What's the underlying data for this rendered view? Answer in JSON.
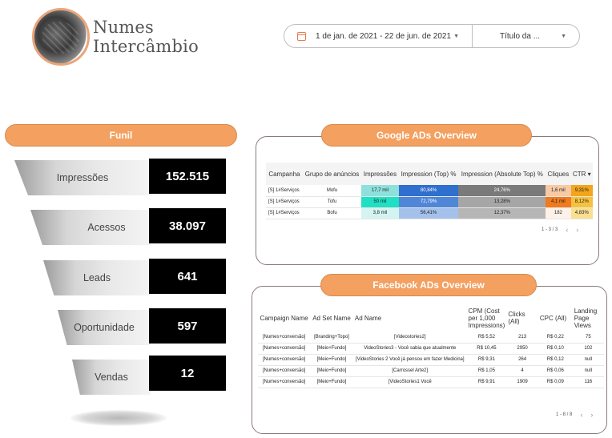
{
  "logo": {
    "line1": "Numes",
    "line2": "Intercâmbio"
  },
  "filters": {
    "date_range": "1 de jan. de 2021 - 22 de jun. de 2021",
    "title": "Título da ...",
    "calendar_icon": "calendar-icon",
    "arrow_icon": "chevron-down-icon"
  },
  "funil": {
    "title": "Funil",
    "steps": [
      {
        "label": "Impressões",
        "value": "152.515"
      },
      {
        "label": "Acessos",
        "value": "38.097"
      },
      {
        "label": "Leads",
        "value": "641"
      },
      {
        "label": "Oportunidade",
        "value": "597"
      },
      {
        "label": "Vendas",
        "value": "12"
      }
    ]
  },
  "google": {
    "title": "Google ADs Overview",
    "columns": [
      "Campanha",
      "Grupo de anúncios",
      "Impressões",
      "Impression (Top) %",
      "Impression (Absolute Top) %",
      "Cliques",
      "CTR"
    ],
    "sort_icon": "▾",
    "rows": [
      [
        "[S] 1#Serviços",
        "Mofu",
        "17,7 mil",
        "80,84%",
        "24,76%",
        "1,6 mil",
        "9,31%"
      ],
      [
        "[S] 1#Serviços",
        "Tofu",
        "50 mil",
        "72,79%",
        "13,28%",
        "4,1 mil",
        "8,12%"
      ],
      [
        "[S] 1#Serviços",
        "Bofu",
        "3,8 mil",
        "56,41%",
        "12,37%",
        "182",
        "4,83%"
      ]
    ],
    "cell_colors": [
      [
        "#ffffff",
        "#ffffff",
        "#8ee0dc",
        "#2f6fce",
        "#7a7a7a",
        "#f7c9a4",
        "#f3a51c"
      ],
      [
        "#ffffff",
        "#ffffff",
        "#1fe0c4",
        "#4f86d8",
        "#a6a6a6",
        "#f07a1e",
        "#f6c23e"
      ],
      [
        "#ffffff",
        "#ffffff",
        "#d4f4f2",
        "#a4c1ec",
        "#b6b6b6",
        "#fdf1e8",
        "#fadf90"
      ]
    ],
    "pager": "1 - 3 / 3"
  },
  "facebook": {
    "title": "Facebook ADs Overview",
    "columns": [
      "Campaign Name",
      "Ad Set Name",
      "Ad Name",
      "CPM (Cost per 1,000 Impressions)",
      "Clicks (All)",
      "CPC (All)",
      "Landing Page Views"
    ],
    "rows": [
      [
        "[Numes+conversão]",
        "[Branding+Topo]",
        "[Videostories2]",
        "R$ 5,52",
        "213",
        "R$ 0,22",
        "75"
      ],
      [
        "[Numes+conversão]",
        "[Meio+Fundo]",
        "VideoStories3 - Você sabia que atualmente",
        "R$ 10,45",
        "2950",
        "R$ 0,10",
        "102"
      ],
      [
        "[Numes+conversão]",
        "[Meio+Fundo]",
        "[VideoStories 2 Você já pensou em fazer Medicina]",
        "R$ 9,31",
        "264",
        "R$ 0,12",
        "null"
      ],
      [
        "[Numes+conversão]",
        "[Meio+Fundo]",
        "[Carrossel Arte2]",
        "R$ 1,05",
        "4",
        "R$ 0,06",
        "null"
      ],
      [
        "[Numes+conversão]",
        "[Meio+Fundo]",
        "[VideoStories1 Você",
        "R$ 9,91",
        "1909",
        "R$ 0,09",
        "116"
      ]
    ],
    "pager": "1 - 8 / 8"
  }
}
